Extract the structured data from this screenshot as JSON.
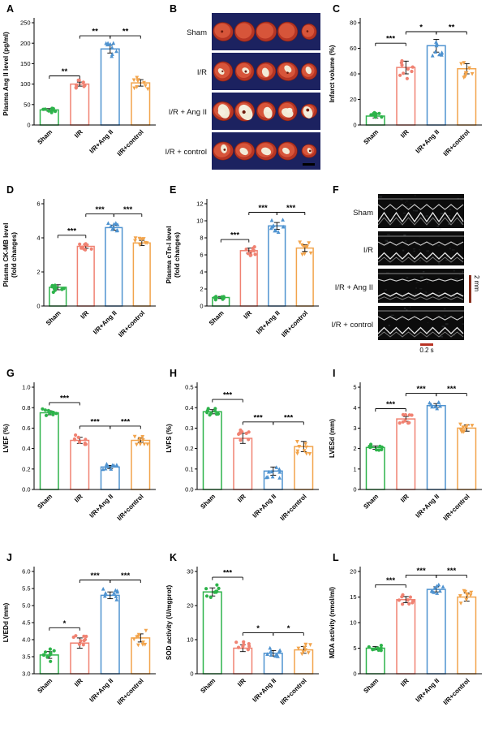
{
  "panel_letters": [
    "A",
    "B",
    "C",
    "D",
    "E",
    "F",
    "G",
    "H",
    "I",
    "J",
    "K",
    "L"
  ],
  "groups": [
    "Sham",
    "I/R",
    "I/R+Ang II",
    "I/R+control"
  ],
  "group_colors": [
    "#2db34a",
    "#f08272",
    "#4f93d0",
    "#f2a44c"
  ],
  "panels": {
    "B": {
      "row_labels": [
        "Sham",
        "I/R",
        "I/R + Ang II",
        "I/R + control"
      ],
      "background": "#1c2260"
    },
    "F": {
      "row_labels": [
        "Sham",
        "I/R",
        "I/R + Ang II",
        "I/R + control"
      ],
      "scale_vertical": "2 mm",
      "scale_horizontal": "0.2 s"
    }
  },
  "chart_data": [
    {
      "panel": "A",
      "type": "bar",
      "ylabel": [
        "Plasma Ang II level (pg/ml)"
      ],
      "ylim": [
        0,
        250
      ],
      "yticks": [
        "0",
        "50",
        "100",
        "150",
        "200",
        "250"
      ],
      "categories": [
        "Sham",
        "I/R",
        "I/R+Ang II",
        "I/R+control"
      ],
      "values": [
        37,
        100,
        186,
        103
      ],
      "errors": [
        3,
        5,
        10,
        8
      ],
      "brackets": [
        {
          "from": 0,
          "to": 1,
          "label": "**",
          "y": 120
        },
        {
          "from": 1,
          "to": 2,
          "label": "**",
          "y": 218
        },
        {
          "from": 2,
          "to": 3,
          "label": "**",
          "y": 218
        }
      ]
    },
    {
      "panel": "C",
      "type": "bar",
      "ylabel": [
        "Infarct volume (%)"
      ],
      "ylim": [
        0,
        80
      ],
      "yticks": [
        "0",
        "20",
        "40",
        "60",
        "80"
      ],
      "categories": [
        "Sham",
        "I/R",
        "I/R+Ang II",
        "I/R+control"
      ],
      "values": [
        7,
        45,
        62,
        44
      ],
      "errors": [
        1.5,
        5,
        5,
        4
      ],
      "brackets": [
        {
          "from": 0,
          "to": 1,
          "label": "***",
          "y": 64
        },
        {
          "from": 1,
          "to": 2,
          "label": "*",
          "y": 73
        },
        {
          "from": 2,
          "to": 3,
          "label": "**",
          "y": 73
        }
      ]
    },
    {
      "panel": "D",
      "type": "bar",
      "ylabel": [
        "Plasma CK-MB level",
        "(fold changes)"
      ],
      "ylim": [
        0,
        6
      ],
      "yticks": [
        "0",
        "2",
        "4",
        "6"
      ],
      "categories": [
        "Sham",
        "I/R",
        "I/R+Ang II",
        "I/R+control"
      ],
      "values": [
        1.1,
        3.5,
        4.6,
        3.7
      ],
      "errors": [
        0.15,
        0.12,
        0.15,
        0.15
      ],
      "brackets": [
        {
          "from": 0,
          "to": 1,
          "label": "***",
          "y": 4.15
        },
        {
          "from": 1,
          "to": 2,
          "label": "***",
          "y": 5.4
        },
        {
          "from": 2,
          "to": 3,
          "label": "***",
          "y": 5.4
        }
      ]
    },
    {
      "panel": "E",
      "type": "bar",
      "ylabel": [
        "Plasma cTn-I level",
        "(fold changes)"
      ],
      "ylim": [
        0,
        12
      ],
      "yticks": [
        "0",
        "2",
        "4",
        "6",
        "8",
        "10",
        "12"
      ],
      "categories": [
        "Sham",
        "I/R",
        "I/R+Ang II",
        "I/R+control"
      ],
      "values": [
        1.0,
        6.5,
        9.4,
        6.8
      ],
      "errors": [
        0.12,
        0.3,
        0.4,
        0.4
      ],
      "brackets": [
        {
          "from": 0,
          "to": 1,
          "label": "***",
          "y": 7.8
        },
        {
          "from": 1,
          "to": 2,
          "label": "***",
          "y": 11
        },
        {
          "from": 2,
          "to": 3,
          "label": "***",
          "y": 11
        }
      ]
    },
    {
      "panel": "G",
      "type": "bar",
      "ylabel": [
        "LVEF (%)"
      ],
      "ylim": [
        0,
        1.0
      ],
      "yticks": [
        "0.0",
        "0.2",
        "0.4",
        "0.6",
        "0.8",
        "1.0"
      ],
      "categories": [
        "Sham",
        "I/R",
        "I/R+Ang II",
        "I/R+control"
      ],
      "values": [
        0.75,
        0.48,
        0.22,
        0.48
      ],
      "errors": [
        0.02,
        0.03,
        0.015,
        0.02
      ],
      "brackets": [
        {
          "from": 0,
          "to": 1,
          "label": "***",
          "y": 0.85
        },
        {
          "from": 1,
          "to": 2,
          "label": "***",
          "y": 0.62
        },
        {
          "from": 2,
          "to": 3,
          "label": "***",
          "y": 0.62
        }
      ]
    },
    {
      "panel": "H",
      "type": "bar",
      "ylabel": [
        "LVFS (%)"
      ],
      "ylim": [
        0,
        0.5
      ],
      "yticks": [
        "0.0",
        "0.1",
        "0.2",
        "0.3",
        "0.4",
        "0.5"
      ],
      "categories": [
        "Sham",
        "I/R",
        "I/R+Ang II",
        "I/R+control"
      ],
      "values": [
        0.38,
        0.25,
        0.09,
        0.21
      ],
      "errors": [
        0.01,
        0.025,
        0.02,
        0.025
      ],
      "brackets": [
        {
          "from": 0,
          "to": 1,
          "label": "***",
          "y": 0.44
        },
        {
          "from": 1,
          "to": 2,
          "label": "***",
          "y": 0.33
        },
        {
          "from": 2,
          "to": 3,
          "label": "***",
          "y": 0.33
        }
      ]
    },
    {
      "panel": "I",
      "type": "bar",
      "ylabel": [
        "LVESd (mm)"
      ],
      "ylim": [
        0,
        5
      ],
      "yticks": [
        "0",
        "1",
        "2",
        "3",
        "4",
        "5"
      ],
      "categories": [
        "Sham",
        "I/R",
        "I/R+Ang II",
        "I/R+control"
      ],
      "values": [
        2.05,
        3.45,
        4.1,
        3.0
      ],
      "errors": [
        0.08,
        0.12,
        0.1,
        0.15
      ],
      "brackets": [
        {
          "from": 0,
          "to": 1,
          "label": "***",
          "y": 3.95
        },
        {
          "from": 1,
          "to": 2,
          "label": "***",
          "y": 4.7
        },
        {
          "from": 2,
          "to": 3,
          "label": "***",
          "y": 4.7
        }
      ]
    },
    {
      "panel": "J",
      "type": "bar",
      "ylabel": [
        "LVEDd (mm)"
      ],
      "ylim": [
        3.0,
        6.0
      ],
      "yticks": [
        "3.0",
        "3.5",
        "4.0",
        "4.5",
        "5.0",
        "5.5",
        "6.0"
      ],
      "categories": [
        "Sham",
        "I/R",
        "I/R+Ang II",
        "I/R+control"
      ],
      "values": [
        3.55,
        3.9,
        5.3,
        4.05
      ],
      "errors": [
        0.1,
        0.15,
        0.1,
        0.12
      ],
      "brackets": [
        {
          "from": 0,
          "to": 1,
          "label": "*",
          "y": 4.35
        },
        {
          "from": 1,
          "to": 2,
          "label": "***",
          "y": 5.75
        },
        {
          "from": 2,
          "to": 3,
          "label": "***",
          "y": 5.75
        }
      ]
    },
    {
      "panel": "K",
      "type": "bar",
      "ylabel": [
        "SOD activity (U/mgprot)"
      ],
      "ylim": [
        0,
        30
      ],
      "yticks": [
        "0",
        "10",
        "20",
        "30"
      ],
      "categories": [
        "Sham",
        "I/R",
        "I/R+Ang II",
        "I/R+control"
      ],
      "values": [
        24,
        7.5,
        6,
        7
      ],
      "errors": [
        1.2,
        1,
        0.8,
        1
      ],
      "brackets": [
        {
          "from": 0,
          "to": 1,
          "label": "***",
          "y": 28.3
        },
        {
          "from": 1,
          "to": 2,
          "label": "*",
          "y": 12
        },
        {
          "from": 2,
          "to": 3,
          "label": "*",
          "y": 12
        }
      ]
    },
    {
      "panel": "L",
      "type": "bar",
      "ylabel": [
        "MDA activity (nmol/ml)"
      ],
      "ylim": [
        0,
        20
      ],
      "yticks": [
        "0",
        "5",
        "10",
        "15",
        "20"
      ],
      "categories": [
        "Sham",
        "I/R",
        "I/R+Ang II",
        "I/R+control"
      ],
      "values": [
        5,
        14.5,
        16.5,
        15
      ],
      "errors": [
        0.3,
        0.6,
        0.5,
        0.8
      ],
      "brackets": [
        {
          "from": 0,
          "to": 1,
          "label": "***",
          "y": 17.4
        },
        {
          "from": 1,
          "to": 2,
          "label": "***",
          "y": 19.3
        },
        {
          "from": 2,
          "to": 3,
          "label": "***",
          "y": 19.3
        }
      ]
    }
  ]
}
